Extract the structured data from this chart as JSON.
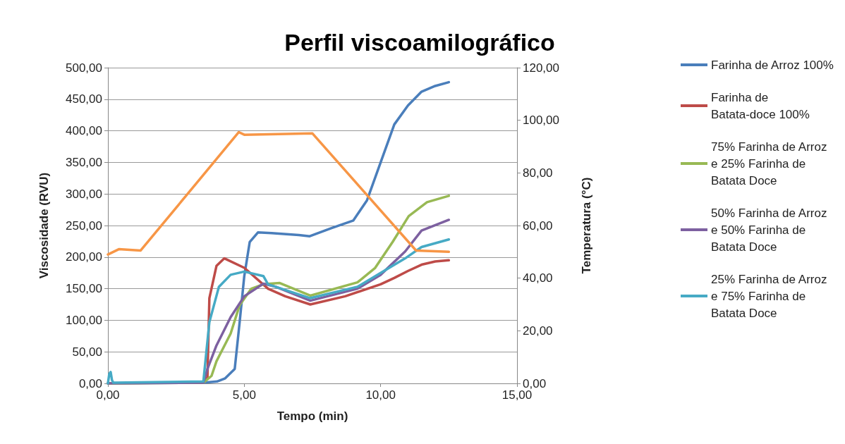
{
  "chart_data": {
    "type": "line",
    "title": "Perfil viscoamilográfico",
    "xlabel": "Tempo (min)",
    "ylabel": "Viscosidade (RVU)",
    "y2label": "Temperatura (°C)",
    "xlim": [
      0,
      15
    ],
    "xticks": [
      {
        "value": 0,
        "label": "0,00"
      },
      {
        "value": 5,
        "label": "5,00"
      },
      {
        "value": 10,
        "label": "10,00"
      },
      {
        "value": 15,
        "label": "15,00"
      }
    ],
    "ylim": [
      0,
      500
    ],
    "yticks": [
      {
        "value": 0,
        "label": "0,00"
      },
      {
        "value": 50,
        "label": "50,00"
      },
      {
        "value": 100,
        "label": "100,00"
      },
      {
        "value": 150,
        "label": "150,00"
      },
      {
        "value": 200,
        "label": "200,00"
      },
      {
        "value": 250,
        "label": "250,00"
      },
      {
        "value": 300,
        "label": "300,00"
      },
      {
        "value": 350,
        "label": "350,00"
      },
      {
        "value": 400,
        "label": "400,00"
      },
      {
        "value": 450,
        "label": "450,00"
      },
      {
        "value": 500,
        "label": "500,00"
      }
    ],
    "y2lim": [
      0,
      120
    ],
    "y2ticks": [
      {
        "value": 0,
        "label": "0,00"
      },
      {
        "value": 20,
        "label": "20,00"
      },
      {
        "value": 40,
        "label": "40,00"
      },
      {
        "value": 60,
        "label": "60,00"
      },
      {
        "value": 80,
        "label": "80,00"
      },
      {
        "value": 100,
        "label": "100,00"
      },
      {
        "value": 120,
        "label": "120,00"
      }
    ],
    "grid": "y",
    "legend": "right",
    "marker": "none",
    "line_style": "solid",
    "series": [
      {
        "name": "Farinha de Arroz 100%",
        "color": "#4a7ebb",
        "x": [
          0,
          3.5,
          4.0,
          4.3,
          4.65,
          4.83,
          5.0,
          5.2,
          5.5,
          6.0,
          7.0,
          7.4,
          8.2,
          9.0,
          9.5,
          10.0,
          10.5,
          11.0,
          11.5,
          12.0,
          12.5
        ],
        "values": [
          0,
          1,
          3,
          8,
          23,
          97,
          170,
          224,
          239,
          238,
          235,
          233,
          246,
          258,
          290,
          350,
          410,
          440,
          462,
          471,
          477
        ]
      },
      {
        "name": "Farinha de Batata-doce 100%",
        "color": "#be4b48",
        "x": [
          0,
          3.5,
          3.65,
          3.72,
          3.98,
          4.27,
          5.0,
          5.87,
          6.5,
          7.42,
          8.7,
          10.0,
          10.5,
          11.0,
          11.5,
          12.0,
          12.5
        ],
        "values": [
          0,
          2,
          10,
          135,
          186,
          198,
          183,
          150,
          138,
          125,
          138,
          157,
          167,
          178,
          188,
          193,
          195
        ]
      },
      {
        "name": "75% Farinha de Arroz e 25% Farinha de Batata Doce",
        "color": "#98b954",
        "x": [
          0,
          3.5,
          3.8,
          3.98,
          4.5,
          4.83,
          5.26,
          5.7,
          6.3,
          7.42,
          9.15,
          9.8,
          10.44,
          11.03,
          11.7,
          12.5
        ],
        "values": [
          0,
          1,
          12,
          35,
          79,
          124,
          150,
          157,
          159,
          139,
          160,
          183,
          224,
          265,
          287,
          297
        ]
      },
      {
        "name": "50% Farinha de Arroz e 50% Farinha de Batata Doce",
        "color": "#7d60a0",
        "x": [
          0,
          3.5,
          3.65,
          3.98,
          4.5,
          5.0,
          5.7,
          6.15,
          7.42,
          9.15,
          10.0,
          10.9,
          11.5,
          12.5
        ],
        "values": [
          0,
          1,
          23,
          60,
          105,
          138,
          158,
          153,
          131,
          150,
          172,
          209,
          242,
          259
        ]
      },
      {
        "name": "25% Farinha de Arroz e 75% Farinha de Batata Doce",
        "color": "#46aac5",
        "x": [
          0,
          0.05,
          0.1,
          0.15,
          0.2,
          3.5,
          3.72,
          4.07,
          4.5,
          5.0,
          5.7,
          5.87,
          7.42,
          9.15,
          10.0,
          10.9,
          11.5,
          12.5
        ],
        "values": [
          0,
          15,
          18,
          5,
          1,
          3,
          97,
          153,
          172,
          177,
          170,
          157,
          135,
          153,
          175,
          198,
          216,
          228
        ]
      },
      {
        "color": "#f79646",
        "axis": "y2",
        "x": [
          0,
          0.4,
          1.2,
          4.8,
          5.0,
          7.5,
          11.3,
          12.5
        ],
        "values": [
          49,
          51,
          50.5,
          95.5,
          94.5,
          95,
          50.5,
          50
        ]
      }
    ]
  }
}
